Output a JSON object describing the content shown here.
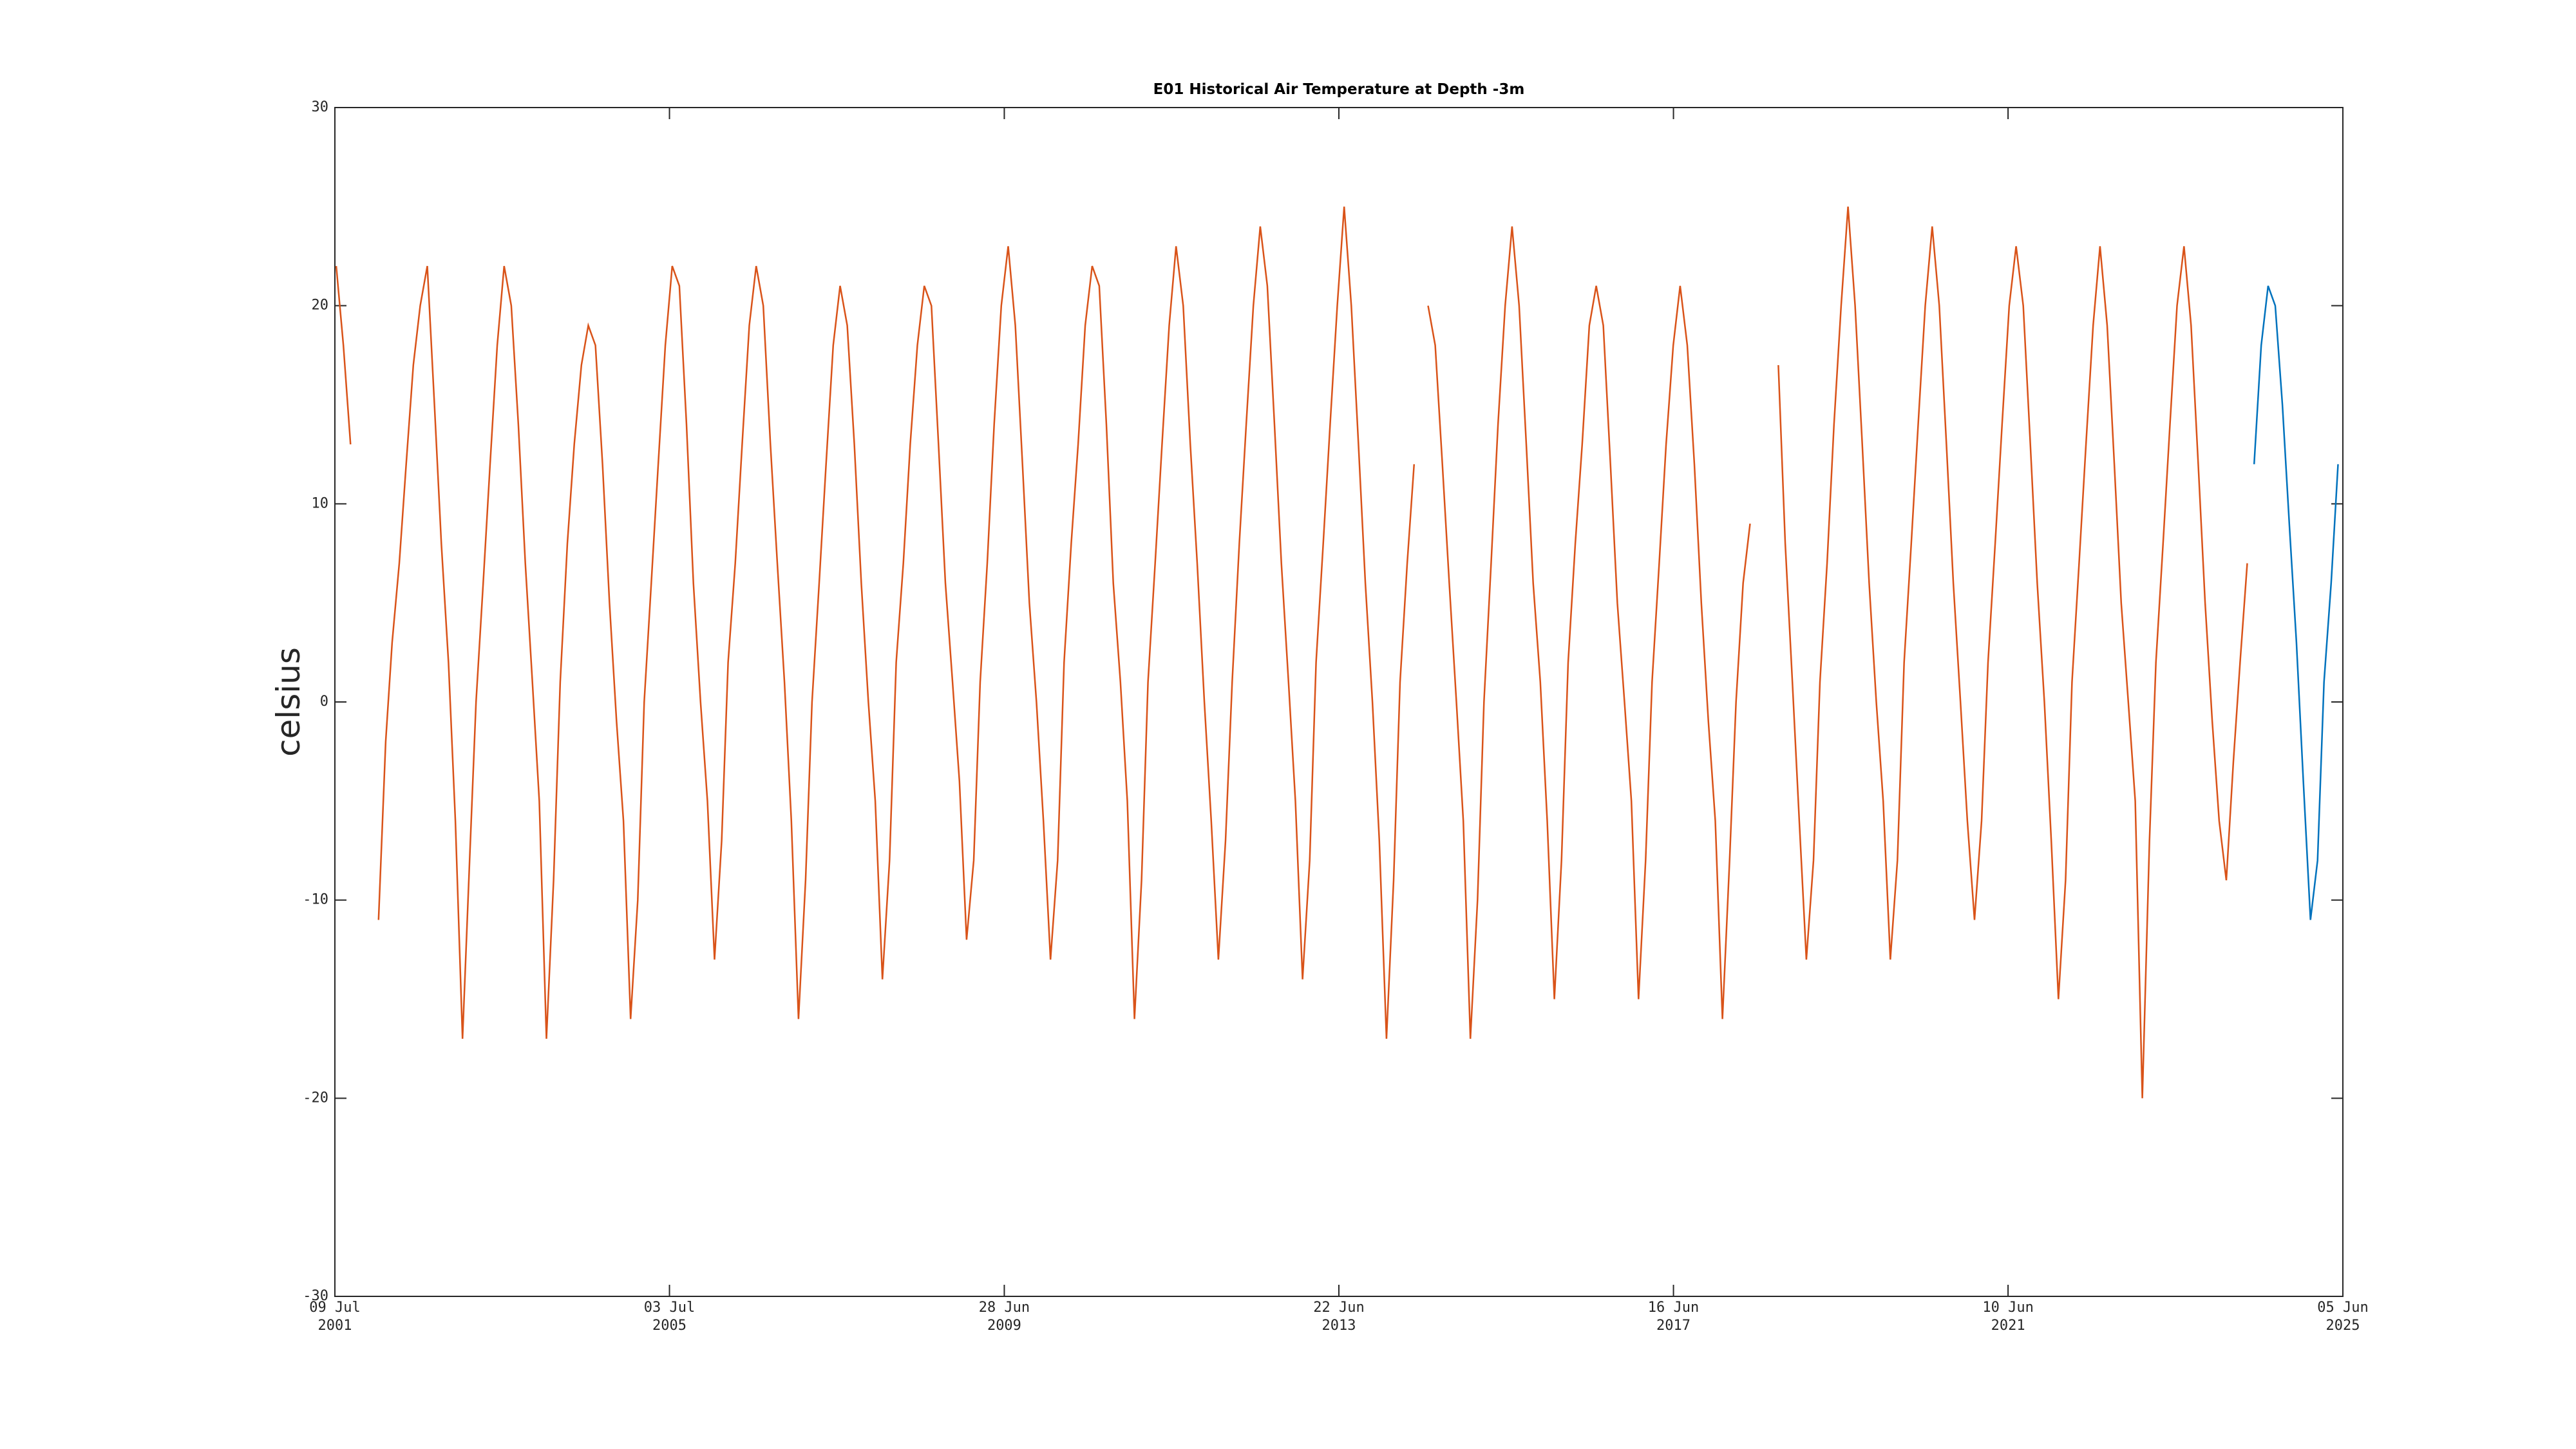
{
  "chart_data": {
    "type": "line",
    "title": "E01 Historical Air Temperature at Depth -3m",
    "y_label": "celsius",
    "xlim": [
      "2001-07-09",
      "2025-06-05"
    ],
    "xticks": [
      {
        "value": "2001-07-09",
        "label": "09 Jul\n2001"
      },
      {
        "value": "2005-07-03",
        "label": "03 Jul\n2005"
      },
      {
        "value": "2009-06-28",
        "label": "28 Jun\n2009"
      },
      {
        "value": "2013-06-22",
        "label": "22 Jun\n2013"
      },
      {
        "value": "2017-06-16",
        "label": "16 Jun\n2017"
      },
      {
        "value": "2021-06-10",
        "label": "10 Jun\n2021"
      },
      {
        "value": "2025-06-05",
        "label": "05 Jun\n2025"
      }
    ],
    "ylim": [
      -30,
      30
    ],
    "yticks": [
      -30,
      -20,
      -10,
      0,
      10,
      20,
      30
    ],
    "grid": false,
    "series": [
      {
        "color": "#d95319",
        "x": [
          "2001-07-15",
          "2001-08-15",
          "2001-09-15",
          "2001-10-15",
          "2001-11-15",
          "2001-12-15",
          "2002-01-15",
          "2002-02-15",
          "2002-03-15",
          "2002-04-15",
          "2002-05-15",
          "2002-06-15",
          "2002-07-15",
          "2002-08-15",
          "2002-09-15",
          "2002-10-15",
          "2002-11-15",
          "2002-12-15",
          "2003-01-15",
          "2003-02-15",
          "2003-03-15",
          "2003-04-15",
          "2003-05-15",
          "2003-06-15",
          "2003-07-15",
          "2003-08-15",
          "2003-09-15",
          "2003-10-15",
          "2003-11-15",
          "2003-12-15",
          "2004-01-15",
          "2004-02-15",
          "2004-03-15",
          "2004-04-15",
          "2004-05-15",
          "2004-06-15",
          "2004-07-15",
          "2004-08-15",
          "2004-09-15",
          "2004-10-15",
          "2004-11-15",
          "2004-12-15",
          "2005-01-15",
          "2005-02-15",
          "2005-03-15",
          "2005-04-15",
          "2005-05-15",
          "2005-06-15",
          "2005-07-15",
          "2005-08-15",
          "2005-09-15",
          "2005-10-15",
          "2005-11-15",
          "2005-12-15",
          "2006-01-15",
          "2006-02-15",
          "2006-03-15",
          "2006-04-15",
          "2006-05-15",
          "2006-06-15",
          "2006-07-15",
          "2006-08-15",
          "2006-09-15",
          "2006-10-15",
          "2006-11-15",
          "2006-12-15",
          "2007-01-15",
          "2007-02-15",
          "2007-03-15",
          "2007-04-15",
          "2007-05-15",
          "2007-06-15",
          "2007-07-15",
          "2007-08-15",
          "2007-09-15",
          "2007-10-15",
          "2007-11-15",
          "2007-12-15",
          "2008-01-15",
          "2008-02-15",
          "2008-03-15",
          "2008-04-15",
          "2008-05-15",
          "2008-06-15",
          "2008-07-15",
          "2008-08-15",
          "2008-09-15",
          "2008-10-15",
          "2008-11-15",
          "2008-12-15",
          "2009-01-15",
          "2009-02-15",
          "2009-03-15",
          "2009-04-15",
          "2009-05-15",
          "2009-06-15",
          "2009-07-15",
          "2009-08-15",
          "2009-09-15",
          "2009-10-15",
          "2009-11-15",
          "2009-12-15",
          "2010-01-15",
          "2010-02-15",
          "2010-03-15",
          "2010-04-15",
          "2010-05-15",
          "2010-06-15",
          "2010-07-15",
          "2010-08-15",
          "2010-09-15",
          "2010-10-15",
          "2010-11-15",
          "2010-12-15",
          "2011-01-15",
          "2011-02-15",
          "2011-03-15",
          "2011-04-15",
          "2011-05-15",
          "2011-06-15",
          "2011-07-15",
          "2011-08-15",
          "2011-09-15",
          "2011-10-15",
          "2011-11-15",
          "2011-12-15",
          "2012-01-15",
          "2012-02-15",
          "2012-03-15",
          "2012-04-15",
          "2012-05-15",
          "2012-06-15",
          "2012-07-15",
          "2012-08-15",
          "2012-09-15",
          "2012-10-15",
          "2012-11-15",
          "2012-12-15",
          "2013-01-15",
          "2013-02-15",
          "2013-03-15",
          "2013-04-15",
          "2013-05-15",
          "2013-06-15",
          "2013-07-15",
          "2013-08-15",
          "2013-09-15",
          "2013-10-15",
          "2013-11-15",
          "2013-12-15",
          "2014-01-15",
          "2014-02-15",
          "2014-03-15",
          "2014-04-15",
          "2014-05-15",
          "2014-06-15",
          "2014-07-15",
          "2014-08-15",
          "2014-09-15",
          "2014-10-15",
          "2014-11-15",
          "2014-12-15",
          "2015-01-15",
          "2015-02-15",
          "2015-03-15",
          "2015-04-15",
          "2015-05-15",
          "2015-06-15",
          "2015-07-15",
          "2015-08-15",
          "2015-09-15",
          "2015-10-15",
          "2015-11-15",
          "2015-12-15",
          "2016-01-15",
          "2016-02-15",
          "2016-03-15",
          "2016-04-15",
          "2016-05-15",
          "2016-06-15",
          "2016-07-15",
          "2016-08-15",
          "2016-09-15",
          "2016-10-15",
          "2016-11-15",
          "2016-12-15",
          "2017-01-15",
          "2017-02-15",
          "2017-03-15",
          "2017-04-15",
          "2017-05-15",
          "2017-06-15",
          "2017-07-15",
          "2017-08-15",
          "2017-09-15",
          "2017-10-15",
          "2017-11-15",
          "2017-12-15",
          "2018-01-15",
          "2018-02-15",
          "2018-03-15",
          "2018-04-15",
          "2018-05-15",
          "2018-06-15",
          "2018-07-15",
          "2018-08-15",
          "2018-09-15",
          "2018-10-15",
          "2018-11-15",
          "2018-12-15",
          "2019-01-15",
          "2019-02-15",
          "2019-03-15",
          "2019-04-15",
          "2019-05-15",
          "2019-06-15",
          "2019-07-15",
          "2019-08-15",
          "2019-09-15",
          "2019-10-15",
          "2019-11-15",
          "2019-12-15",
          "2020-01-15",
          "2020-02-15",
          "2020-03-15",
          "2020-04-15",
          "2020-05-15",
          "2020-06-15",
          "2020-07-15",
          "2020-08-15",
          "2020-09-15",
          "2020-10-15",
          "2020-11-15",
          "2020-12-15",
          "2021-01-15",
          "2021-02-15",
          "2021-03-15",
          "2021-04-15",
          "2021-05-15",
          "2021-06-15",
          "2021-07-15",
          "2021-08-15",
          "2021-09-15",
          "2021-10-15",
          "2021-11-15",
          "2021-12-15",
          "2022-01-15",
          "2022-02-15",
          "2022-03-15",
          "2022-04-15",
          "2022-05-15",
          "2022-06-15",
          "2022-07-15",
          "2022-08-15",
          "2022-09-15",
          "2022-10-15",
          "2022-11-15",
          "2022-12-15",
          "2023-01-15",
          "2023-02-15",
          "2023-03-15",
          "2023-04-15",
          "2023-05-15",
          "2023-06-15",
          "2023-07-15",
          "2023-08-15",
          "2023-09-15",
          "2023-10-15",
          "2023-11-15",
          "2023-12-15",
          "2024-01-15",
          "2024-02-15",
          "2024-03-15",
          "2024-04-15"
        ],
        "values": [
          22,
          18,
          13,
          null,
          null,
          null,
          -11,
          -2,
          3,
          7,
          12,
          17,
          20,
          22,
          15,
          8,
          2,
          -6,
          -17,
          -8,
          0,
          6,
          12,
          18,
          22,
          20,
          14,
          7,
          1,
          -5,
          -17,
          -9,
          1,
          8,
          13,
          17,
          19,
          18,
          12,
          5,
          -1,
          -6,
          -16,
          -10,
          0,
          6,
          12,
          18,
          22,
          21,
          14,
          6,
          0,
          -5,
          -13,
          -7,
          2,
          7,
          13,
          19,
          22,
          20,
          13,
          7,
          1,
          -6,
          -16,
          -9,
          0,
          6,
          12,
          18,
          21,
          19,
          13,
          6,
          0,
          -5,
          -14,
          -8,
          2,
          7,
          13,
          18,
          21,
          20,
          13,
          6,
          1,
          -4,
          -12,
          -8,
          1,
          7,
          14,
          20,
          23,
          19,
          12,
          5,
          0,
          -6,
          -13,
          -8,
          2,
          8,
          13,
          19,
          22,
          21,
          14,
          6,
          1,
          -5,
          -16,
          -9,
          1,
          7,
          13,
          19,
          23,
          20,
          13,
          7,
          0,
          -6,
          -13,
          -7,
          1,
          8,
          14,
          20,
          24,
          21,
          14,
          7,
          1,
          -5,
          -14,
          -8,
          2,
          8,
          14,
          20,
          25,
          20,
          13,
          6,
          0,
          -7,
          -17,
          -9,
          1,
          7,
          12,
          null,
          20,
          18,
          12,
          6,
          0,
          -6,
          -17,
          -10,
          0,
          7,
          14,
          20,
          24,
          20,
          13,
          6,
          1,
          -6,
          -15,
          -8,
          2,
          8,
          13,
          19,
          21,
          19,
          12,
          5,
          0,
          -5,
          -15,
          -8,
          1,
          7,
          13,
          18,
          21,
          18,
          12,
          5,
          -1,
          -6,
          -16,
          -8,
          0,
          6,
          9,
          null,
          null,
          null,
          17,
          8,
          1,
          -6,
          -13,
          -8,
          1,
          7,
          14,
          20,
          25,
          20,
          13,
          6,
          0,
          -5,
          -13,
          -8,
          2,
          8,
          14,
          20,
          24,
          20,
          13,
          6,
          0,
          -6,
          -11,
          -6,
          2,
          8,
          14,
          20,
          23,
          20,
          13,
          6,
          0,
          -7,
          -15,
          -9,
          1,
          7,
          13,
          19,
          23,
          19,
          12,
          5,
          0,
          -5,
          -20,
          -7,
          2,
          8,
          14,
          20,
          23,
          19,
          12,
          5,
          -1,
          -6,
          -9,
          -3,
          2,
          7
        ]
      },
      {
        "color": "#0072bd",
        "x": [
          "2024-05-15",
          "2024-06-15",
          "2024-07-15",
          "2024-08-15",
          "2024-09-15",
          "2024-10-15",
          "2024-11-15",
          "2024-12-15",
          "2025-01-15",
          "2025-02-15",
          "2025-03-15",
          "2025-04-15",
          "2025-05-15"
        ],
        "values": [
          12,
          18,
          21,
          20,
          15,
          9,
          3,
          -4,
          -11,
          -8,
          1,
          6,
          12
        ]
      }
    ]
  }
}
